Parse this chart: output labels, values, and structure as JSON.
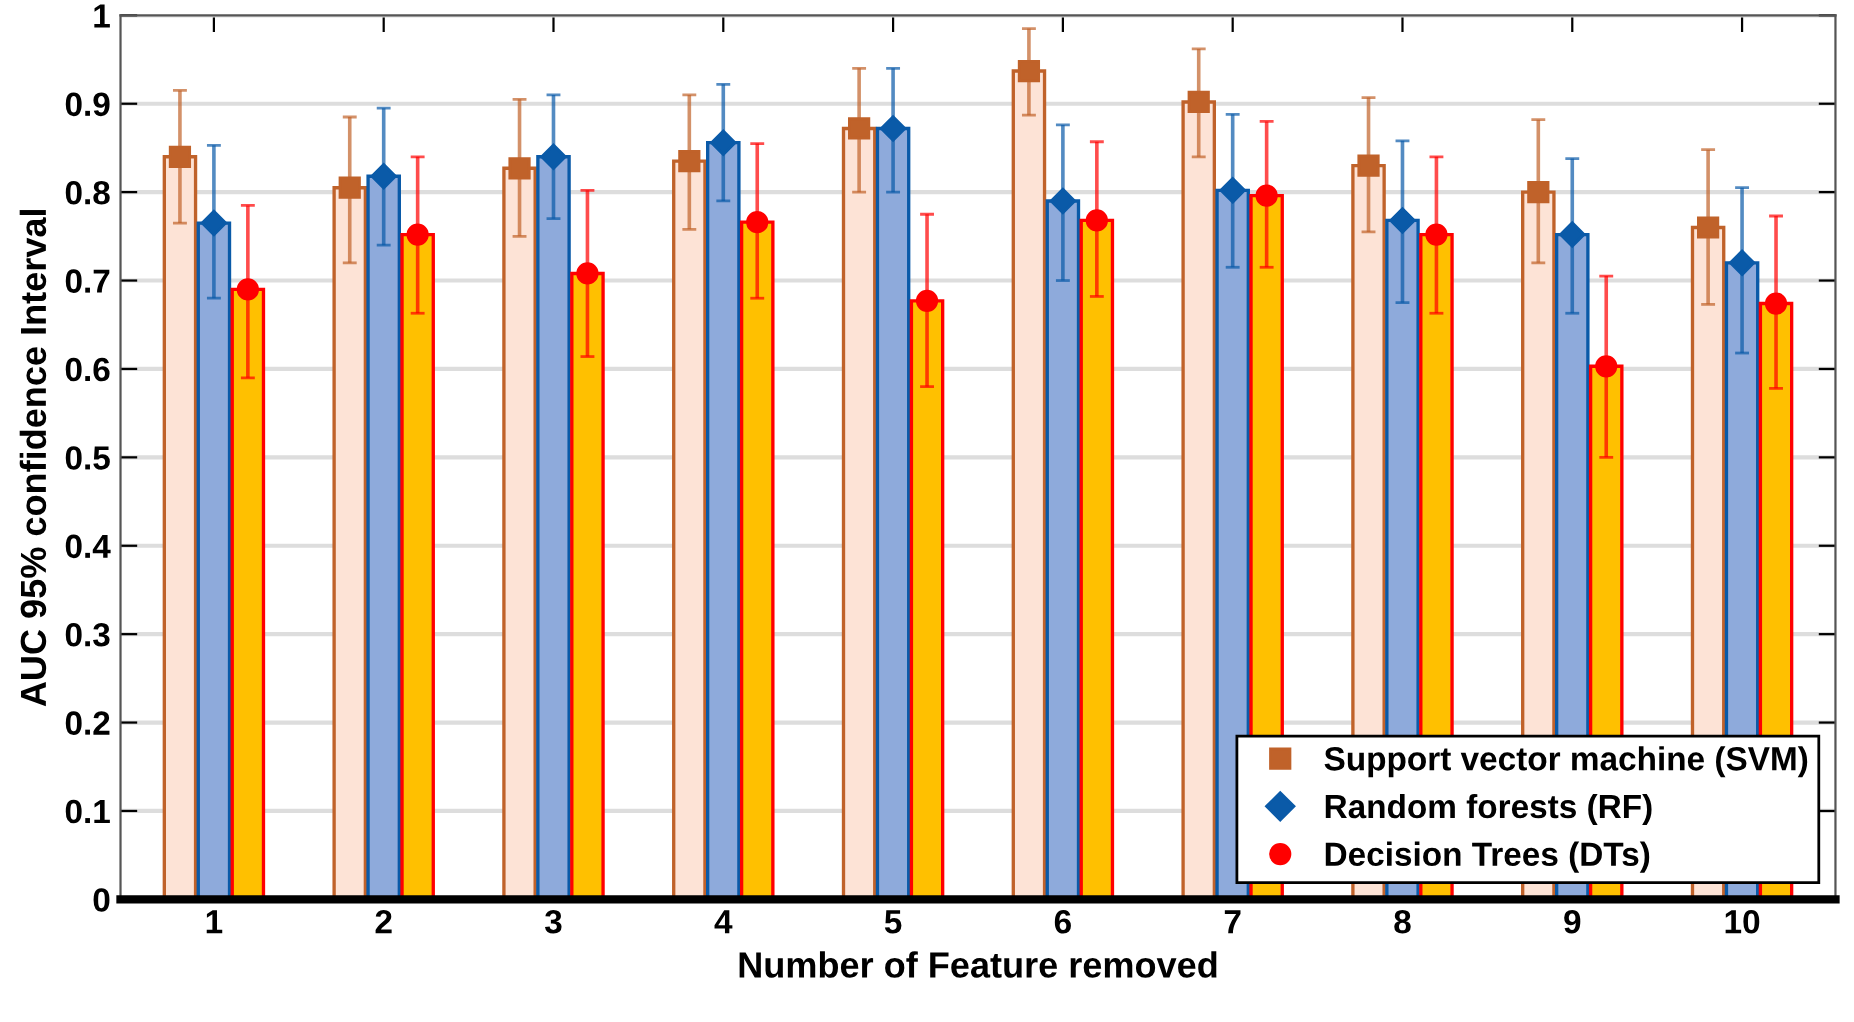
{
  "chart_data": {
    "type": "bar",
    "xlabel": "Number of Feature removed",
    "ylabel": "AUC 95% confidence Interval",
    "categories": [
      "1",
      "2",
      "3",
      "4",
      "5",
      "6",
      "7",
      "8",
      "9",
      "10"
    ],
    "series": [
      {
        "color": "#fde3d6",
        "values": [
          0.84,
          0.805,
          0.827,
          0.835,
          0.872,
          0.937,
          0.902,
          0.83,
          0.8,
          0.76
        ]
      },
      {
        "color": "#8eaadb",
        "values": [
          0.765,
          0.818,
          0.84,
          0.856,
          0.872,
          0.79,
          0.802,
          0.768,
          0.752,
          0.72
        ]
      },
      {
        "color": "#ffc000",
        "values": [
          0.69,
          0.752,
          0.708,
          0.766,
          0.677,
          0.768,
          0.796,
          0.752,
          0.603,
          0.674
        ]
      },
      {
        "type": "scatter",
        "name": "Support vector machine (SVM)",
        "color": "#c0622a",
        "marker": "square",
        "x": [
          "1",
          "2",
          "3",
          "4",
          "5",
          "6",
          "7",
          "8",
          "9",
          "10"
        ],
        "values": [
          0.84,
          0.805,
          0.827,
          0.835,
          0.872,
          0.937,
          0.902,
          0.83,
          0.8,
          0.76
        ],
        "errors": [
          [
            0.765,
            0.915
          ],
          [
            0.72,
            0.885
          ],
          [
            0.75,
            0.905
          ],
          [
            0.758,
            0.91
          ],
          [
            0.8,
            0.94
          ],
          [
            0.887,
            0.985
          ],
          [
            0.84,
            0.962
          ],
          [
            0.755,
            0.907
          ],
          [
            0.72,
            0.882
          ],
          [
            0.673,
            0.848
          ]
        ]
      },
      {
        "type": "scatter",
        "name": "Random forests (RF)",
        "color": "#0a5aa8",
        "marker": "diamond",
        "x": [
          "1",
          "2",
          "3",
          "4",
          "5",
          "6",
          "7",
          "8",
          "9",
          "10"
        ],
        "values": [
          0.765,
          0.818,
          0.84,
          0.856,
          0.872,
          0.79,
          0.802,
          0.768,
          0.752,
          0.72
        ],
        "errors": [
          [
            0.68,
            0.853
          ],
          [
            0.74,
            0.895
          ],
          [
            0.77,
            0.91
          ],
          [
            0.79,
            0.922
          ],
          [
            0.8,
            0.94
          ],
          [
            0.7,
            0.876
          ],
          [
            0.715,
            0.888
          ],
          [
            0.675,
            0.858
          ],
          [
            0.663,
            0.838
          ],
          [
            0.618,
            0.805
          ]
        ]
      },
      {
        "type": "scatter",
        "name": "Decision Trees (DTs)",
        "color": "#ff0000",
        "marker": "circle",
        "x": [
          "1",
          "2",
          "3",
          "4",
          "5",
          "6",
          "7",
          "8",
          "9",
          "10"
        ],
        "values": [
          0.69,
          0.752,
          0.708,
          0.766,
          0.677,
          0.768,
          0.796,
          0.752,
          0.603,
          0.674
        ],
        "errors": [
          [
            0.59,
            0.785
          ],
          [
            0.663,
            0.84
          ],
          [
            0.614,
            0.802
          ],
          [
            0.68,
            0.855
          ],
          [
            0.58,
            0.775
          ],
          [
            0.682,
            0.857
          ],
          [
            0.715,
            0.88
          ],
          [
            0.663,
            0.84
          ],
          [
            0.5,
            0.705
          ],
          [
            0.578,
            0.773
          ]
        ]
      }
    ],
    "ylim": [
      0,
      1
    ],
    "yticks": [
      0,
      0.1,
      0.2,
      0.3,
      0.4,
      0.5,
      0.6,
      0.7,
      0.8,
      0.9,
      1
    ],
    "grid": "y",
    "legend": "bottom right"
  }
}
